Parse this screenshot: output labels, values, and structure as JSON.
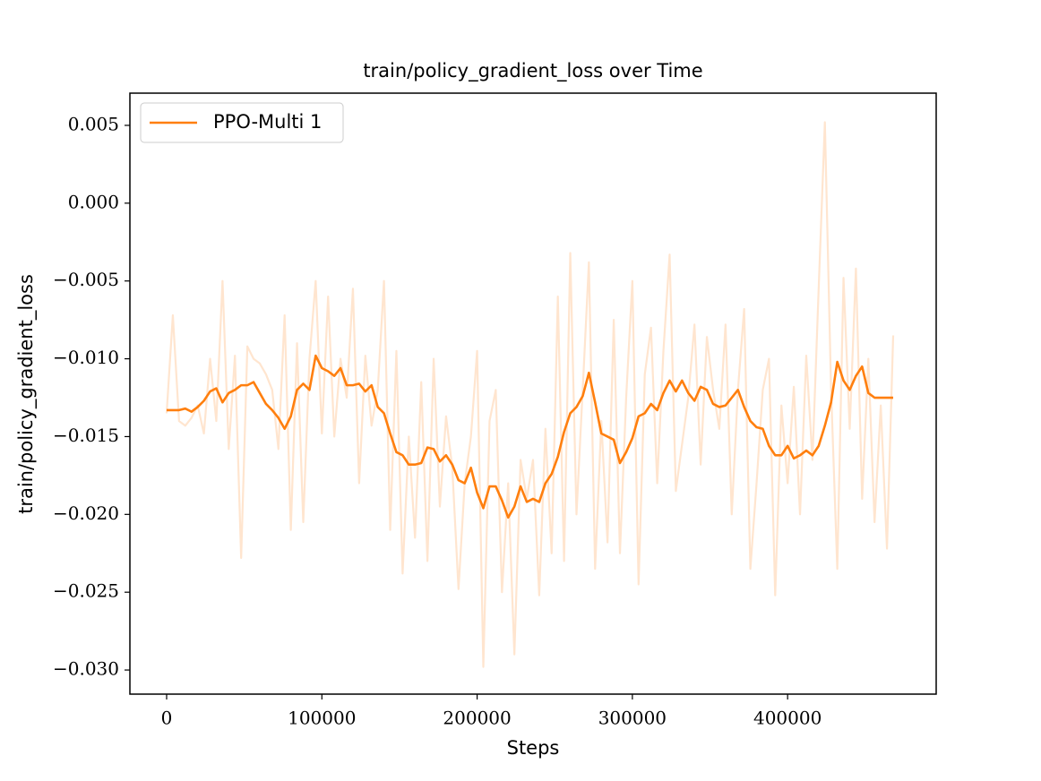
{
  "chart_data": {
    "type": "line",
    "title": "train/policy_gradient_loss over Time",
    "x_label": "Steps",
    "y_label": "train/policy_gradient_loss",
    "x": [
      0,
      4000,
      8000,
      12000,
      16000,
      20000,
      24000,
      28000,
      32000,
      36000,
      40000,
      44000,
      48000,
      52000,
      56000,
      60000,
      64000,
      68000,
      72000,
      76000,
      80000,
      84000,
      88000,
      92000,
      96000,
      100000,
      104000,
      108000,
      112000,
      116000,
      120000,
      124000,
      128000,
      132000,
      136000,
      140000,
      144000,
      148000,
      152000,
      156000,
      160000,
      164000,
      168000,
      172000,
      176000,
      180000,
      184000,
      188000,
      192000,
      196000,
      200000,
      204000,
      208000,
      212000,
      216000,
      220000,
      224000,
      228000,
      232000,
      236000,
      240000,
      244000,
      248000,
      252000,
      256000,
      260000,
      264000,
      268000,
      272000,
      276000,
      280000,
      284000,
      288000,
      292000,
      296000,
      300000,
      304000,
      308000,
      312000,
      316000,
      320000,
      324000,
      328000,
      332000,
      336000,
      340000,
      344000,
      348000,
      352000,
      356000,
      360000,
      364000,
      368000,
      372000,
      376000,
      380000,
      384000,
      388000,
      392000,
      396000,
      400000,
      404000,
      408000,
      412000,
      416000,
      420000,
      424000,
      428000,
      432000,
      436000,
      440000,
      444000,
      448000,
      452000,
      456000,
      460000,
      464000,
      468000
    ],
    "series": [
      {
        "color": "#ff7f0e",
        "alpha": 0.2,
        "values": [
          -0.0135,
          -0.0072,
          -0.014,
          -0.0143,
          -0.0138,
          -0.013,
          -0.0148,
          -0.01,
          -0.014,
          -0.005,
          -0.0158,
          -0.0098,
          -0.0228,
          -0.0092,
          -0.01,
          -0.0103,
          -0.011,
          -0.012,
          -0.0158,
          -0.0072,
          -0.021,
          -0.009,
          -0.0205,
          -0.01,
          -0.005,
          -0.0148,
          -0.006,
          -0.015,
          -0.01,
          -0.0125,
          -0.0055,
          -0.018,
          -0.0098,
          -0.0143,
          -0.012,
          -0.005,
          -0.021,
          -0.0095,
          -0.0238,
          -0.015,
          -0.0215,
          -0.0115,
          -0.023,
          -0.01,
          -0.0195,
          -0.0137,
          -0.017,
          -0.0248,
          -0.018,
          -0.015,
          -0.0095,
          -0.0298,
          -0.014,
          -0.012,
          -0.025,
          -0.018,
          -0.029,
          -0.0165,
          -0.019,
          -0.0165,
          -0.0252,
          -0.0145,
          -0.0225,
          -0.006,
          -0.023,
          -0.0032,
          -0.02,
          -0.012,
          -0.0038,
          -0.0235,
          -0.014,
          -0.0218,
          -0.0075,
          -0.0225,
          -0.0125,
          -0.005,
          -0.0245,
          -0.011,
          -0.008,
          -0.018,
          -0.0095,
          -0.0033,
          -0.0185,
          -0.0155,
          -0.0125,
          -0.0078,
          -0.0168,
          -0.0086,
          -0.012,
          -0.0145,
          -0.0078,
          -0.02,
          -0.012,
          -0.0068,
          -0.0235,
          -0.018,
          -0.012,
          -0.01,
          -0.0252,
          -0.013,
          -0.018,
          -0.0118,
          -0.02,
          -0.0098,
          -0.0165,
          -0.0055,
          0.0052,
          -0.012,
          -0.0235,
          -0.0048,
          -0.0145,
          -0.0042,
          -0.019,
          -0.01,
          -0.0205,
          -0.013,
          -0.0222,
          -0.0085
        ]
      },
      {
        "name": "PPO-Multi 1",
        "color": "#ff7f0e",
        "values": [
          -0.0133,
          -0.0133,
          -0.0133,
          -0.0132,
          -0.0134,
          -0.0131,
          -0.0127,
          -0.0121,
          -0.0119,
          -0.0128,
          -0.0122,
          -0.012,
          -0.0117,
          -0.0117,
          -0.0115,
          -0.0122,
          -0.0129,
          -0.0133,
          -0.0138,
          -0.0145,
          -0.0137,
          -0.012,
          -0.0116,
          -0.012,
          -0.0098,
          -0.0106,
          -0.0108,
          -0.0111,
          -0.0106,
          -0.0117,
          -0.0117,
          -0.0116,
          -0.0121,
          -0.0117,
          -0.0131,
          -0.0135,
          -0.0148,
          -0.016,
          -0.0162,
          -0.0168,
          -0.0168,
          -0.0167,
          -0.0157,
          -0.0158,
          -0.0166,
          -0.0162,
          -0.0168,
          -0.0178,
          -0.018,
          -0.017,
          -0.0186,
          -0.0196,
          -0.0182,
          -0.0182,
          -0.0191,
          -0.0202,
          -0.0195,
          -0.0182,
          -0.0192,
          -0.019,
          -0.0192,
          -0.018,
          -0.0174,
          -0.0163,
          -0.0147,
          -0.0135,
          -0.0131,
          -0.0124,
          -0.0109,
          -0.0128,
          -0.0148,
          -0.015,
          -0.0152,
          -0.0167,
          -0.016,
          -0.0151,
          -0.0137,
          -0.0135,
          -0.0129,
          -0.0133,
          -0.0122,
          -0.0114,
          -0.0121,
          -0.0114,
          -0.0122,
          -0.0127,
          -0.0118,
          -0.012,
          -0.0129,
          -0.0131,
          -0.013,
          -0.0125,
          -0.012,
          -0.0131,
          -0.014,
          -0.0144,
          -0.0145,
          -0.0156,
          -0.0162,
          -0.0162,
          -0.0156,
          -0.0164,
          -0.0162,
          -0.0159,
          -0.0162,
          -0.0156,
          -0.0143,
          -0.0128,
          -0.0102,
          -0.0114,
          -0.012,
          -0.0111,
          -0.0105,
          -0.0122,
          -0.0125,
          -0.0125,
          -0.0125,
          -0.0125
        ]
      }
    ],
    "xlim": [
      -23660,
      495700
    ],
    "ylim": [
      -0.03155,
      0.00707
    ],
    "xticks": [
      0,
      100000,
      200000,
      300000,
      400000
    ],
    "yticks": [
      0.005,
      {
        "value": 0,
        "label": "0.000"
      },
      {
        "value": -0.005,
        "label": "−0.005"
      },
      {
        "value": -0.01,
        "label": "−0.010"
      },
      {
        "value": -0.015,
        "label": "−0.015"
      },
      {
        "value": -0.02,
        "label": "−0.020"
      },
      {
        "value": -0.025,
        "label": "−0.025"
      },
      {
        "value": -0.03,
        "label": "−0.030"
      }
    ],
    "legend": "upper left",
    "grid": false
  }
}
